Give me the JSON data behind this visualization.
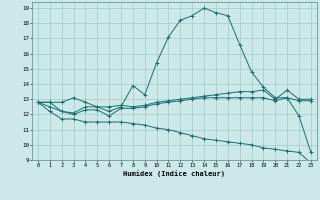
{
  "title": "",
  "xlabel": "Humidex (Indice chaleur)",
  "ylabel": "",
  "bg_color": "#cce8e8",
  "line_color": "#1a6e6e",
  "grid_color": "#a0cccc",
  "xlim": [
    -0.5,
    23.5
  ],
  "ylim": [
    9,
    19.4
  ],
  "xticks": [
    0,
    1,
    2,
    3,
    4,
    5,
    6,
    7,
    8,
    9,
    10,
    11,
    12,
    13,
    14,
    15,
    16,
    17,
    18,
    19,
    20,
    21,
    22,
    23
  ],
  "yticks": [
    9,
    10,
    11,
    12,
    13,
    14,
    15,
    16,
    17,
    18,
    19
  ],
  "series1_x": [
    0,
    1,
    2,
    3,
    4,
    5,
    6,
    7,
    8,
    9,
    10,
    11,
    12,
    13,
    14,
    15,
    16,
    17,
    18,
    19,
    20,
    21,
    22,
    23
  ],
  "series1_y": [
    12.8,
    12.8,
    12.8,
    13.1,
    12.8,
    12.5,
    12.2,
    12.5,
    13.9,
    13.3,
    15.4,
    17.1,
    18.2,
    18.5,
    19.0,
    18.7,
    18.5,
    16.6,
    14.8,
    13.8,
    13.1,
    13.1,
    11.9,
    9.5
  ],
  "series2_x": [
    0,
    1,
    2,
    3,
    4,
    5,
    6,
    7,
    8,
    9,
    10,
    11,
    12,
    13,
    14,
    15,
    16,
    17,
    18,
    19,
    20,
    21,
    22,
    23
  ],
  "series2_y": [
    12.8,
    12.8,
    12.2,
    12.1,
    12.5,
    12.5,
    12.5,
    12.6,
    12.5,
    12.6,
    12.8,
    12.9,
    13.0,
    13.1,
    13.2,
    13.3,
    13.4,
    13.5,
    13.5,
    13.6,
    13.0,
    13.6,
    13.0,
    13.0
  ],
  "series3_x": [
    0,
    1,
    2,
    3,
    4,
    5,
    6,
    7,
    8,
    9,
    10,
    11,
    12,
    13,
    14,
    15,
    16,
    17,
    18,
    19,
    20,
    21,
    22,
    23
  ],
  "series3_y": [
    12.8,
    12.5,
    12.2,
    12.0,
    12.3,
    12.3,
    11.9,
    12.4,
    12.4,
    12.5,
    12.7,
    12.8,
    12.9,
    13.0,
    13.1,
    13.1,
    13.1,
    13.1,
    13.1,
    13.1,
    12.9,
    13.1,
    12.9,
    12.9
  ],
  "series4_x": [
    0,
    1,
    2,
    3,
    4,
    5,
    6,
    7,
    8,
    9,
    10,
    11,
    12,
    13,
    14,
    15,
    16,
    17,
    18,
    19,
    20,
    21,
    22,
    23
  ],
  "series4_y": [
    12.8,
    12.2,
    11.7,
    11.7,
    11.5,
    11.5,
    11.5,
    11.5,
    11.4,
    11.3,
    11.1,
    11.0,
    10.8,
    10.6,
    10.4,
    10.3,
    10.2,
    10.1,
    10.0,
    9.8,
    9.7,
    9.6,
    9.5,
    8.8
  ]
}
